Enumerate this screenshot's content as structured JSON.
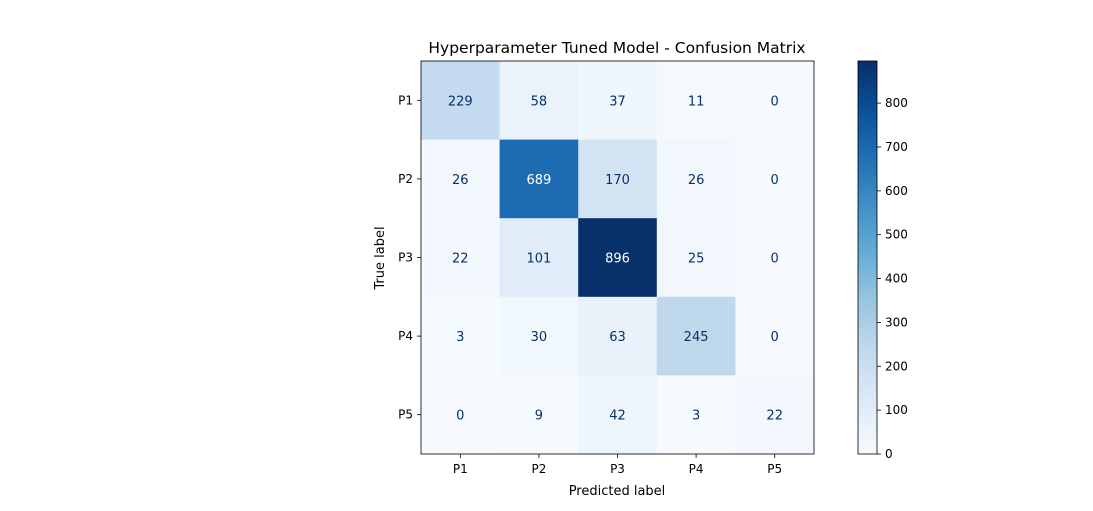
{
  "chart_data": {
    "type": "heatmap",
    "title": "Hyperparameter Tuned Model - Confusion Matrix",
    "xlabel": "Predicted label",
    "ylabel": "True label",
    "x_categories": [
      "P1",
      "P2",
      "P3",
      "P4",
      "P5"
    ],
    "y_categories": [
      "P1",
      "P2",
      "P3",
      "P4",
      "P5"
    ],
    "values": [
      [
        229,
        58,
        37,
        11,
        0
      ],
      [
        26,
        689,
        170,
        26,
        0
      ],
      [
        22,
        101,
        896,
        25,
        0
      ],
      [
        3,
        30,
        63,
        245,
        0
      ],
      [
        0,
        9,
        42,
        3,
        22
      ]
    ],
    "colormap": "Blues",
    "colorbar": {
      "range": [
        0,
        896
      ],
      "ticks": [
        0,
        100,
        200,
        300,
        400,
        500,
        600,
        700,
        800
      ]
    },
    "text_colors": {
      "light": "#ffffff",
      "dark": "#08306b"
    }
  }
}
